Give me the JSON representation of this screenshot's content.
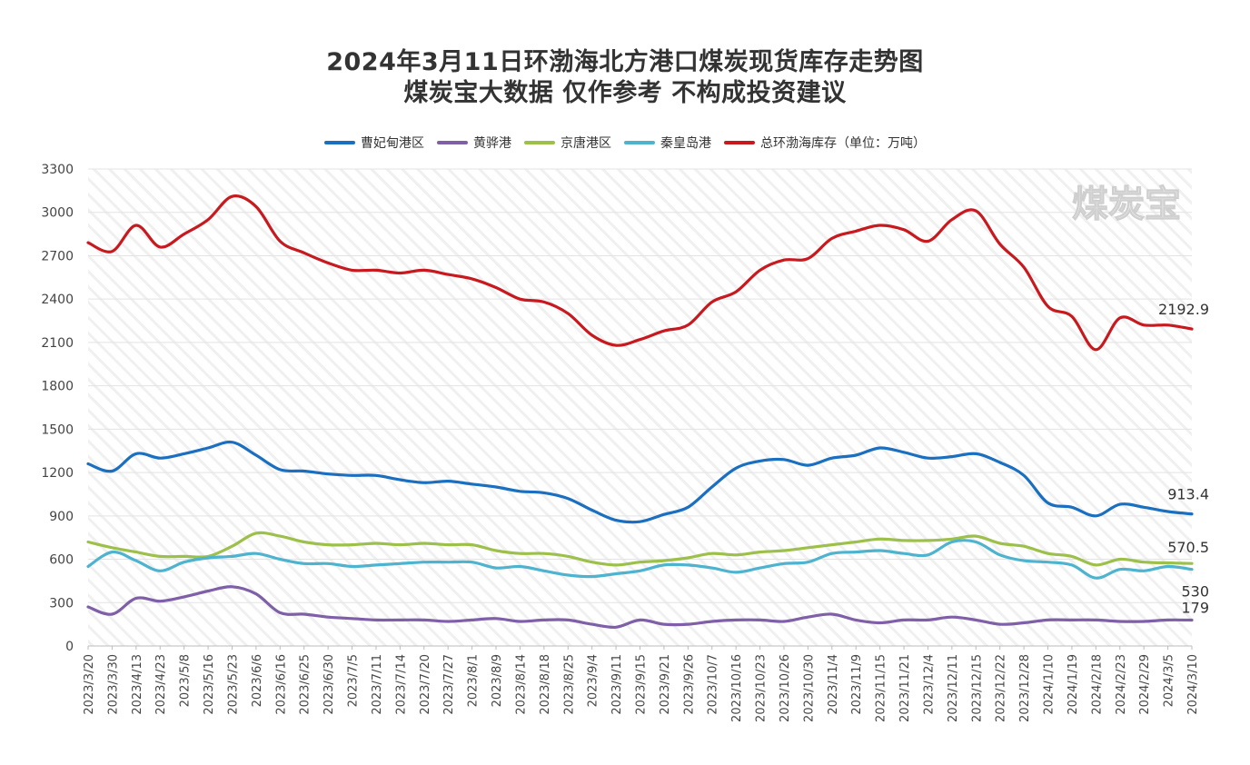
{
  "chart_data": {
    "type": "line",
    "title": "2024年3月11日环渤海北方港口煤炭现货库存走势图",
    "subtitle": "煤炭宝大数据 仅作参考 不构成投资建议",
    "watermark": "煤炭宝",
    "legend_position": "top",
    "grid": true,
    "ylim": [
      0,
      3300
    ],
    "yticks": [
      0,
      300,
      600,
      900,
      1200,
      1500,
      1800,
      2100,
      2400,
      2700,
      3000,
      3300
    ],
    "categories": [
      "2023/3/20",
      "2023/3/30",
      "2023/4/13",
      "2023/4/23",
      "2023/5/8",
      "2023/5/16",
      "2023/5/23",
      "2023/6/6",
      "2023/6/16",
      "2023/6/25",
      "2023/6/30",
      "2023/7/5",
      "2023/7/11",
      "2023/7/14",
      "2023/7/20",
      "2023/7/27",
      "2023/8/1",
      "2023/8/9",
      "2023/8/14",
      "2023/8/18",
      "2023/8/25",
      "2023/9/4",
      "2023/9/11",
      "2023/9/15",
      "2023/9/21",
      "2023/9/26",
      "2023/10/7",
      "2023/10/16",
      "2023/10/23",
      "2023/10/26",
      "2023/10/30",
      "2023/11/4",
      "2023/11/9",
      "2023/11/15",
      "2023/11/21",
      "2023/12/4",
      "2023/12/11",
      "2023/12/15",
      "2023/12/22",
      "2023/12/28",
      "2024/1/10",
      "2024/1/19",
      "2024/2/18",
      "2024/2/23",
      "2024/2/29",
      "2024/3/5",
      "2024/3/10"
    ],
    "series": [
      {
        "name": "曹妃甸港区",
        "color": "#1a6fc0",
        "last_label": "913.4",
        "values": [
          1260,
          1210,
          1330,
          1300,
          1330,
          1370,
          1410,
          1320,
          1220,
          1210,
          1190,
          1180,
          1180,
          1150,
          1130,
          1140,
          1120,
          1100,
          1070,
          1060,
          1020,
          940,
          870,
          860,
          910,
          960,
          1100,
          1230,
          1280,
          1290,
          1250,
          1300,
          1320,
          1370,
          1340,
          1300,
          1310,
          1330,
          1270,
          1180,
          990,
          960,
          900,
          980,
          960,
          930,
          913.4
        ]
      },
      {
        "name": "黄骅港",
        "color": "#7f5fa8",
        "last_label": "179",
        "values": [
          270,
          220,
          330,
          310,
          340,
          380,
          410,
          360,
          230,
          220,
          200,
          190,
          180,
          180,
          180,
          170,
          180,
          190,
          170,
          180,
          180,
          150,
          130,
          180,
          150,
          150,
          170,
          180,
          180,
          170,
          200,
          220,
          180,
          160,
          180,
          180,
          200,
          180,
          150,
          160,
          180,
          180,
          180,
          170,
          170,
          180,
          179
        ]
      },
      {
        "name": "京唐港区",
        "color": "#9cc04a",
        "last_label": "570.5",
        "values": [
          720,
          680,
          650,
          620,
          620,
          620,
          690,
          780,
          760,
          720,
          700,
          700,
          710,
          700,
          710,
          700,
          700,
          660,
          640,
          640,
          620,
          580,
          560,
          580,
          590,
          610,
          640,
          630,
          650,
          660,
          680,
          700,
          720,
          740,
          730,
          730,
          740,
          760,
          710,
          690,
          640,
          620,
          560,
          600,
          580,
          575,
          570.5
        ]
      },
      {
        "name": "秦皇岛港",
        "color": "#4db3cf",
        "last_label": "530",
        "values": [
          550,
          650,
          590,
          520,
          580,
          610,
          620,
          640,
          600,
          570,
          570,
          550,
          560,
          570,
          580,
          580,
          580,
          540,
          550,
          520,
          490,
          480,
          500,
          520,
          560,
          560,
          540,
          510,
          540,
          570,
          580,
          640,
          650,
          660,
          640,
          630,
          720,
          720,
          630,
          590,
          580,
          560,
          470,
          530,
          520,
          550,
          530
        ]
      },
      {
        "name": "总环渤海库存（单位：万吨）",
        "color": "#c8191e",
        "last_label": "2192.9",
        "values": [
          2790,
          2730,
          2910,
          2760,
          2850,
          2950,
          3110,
          3040,
          2800,
          2720,
          2650,
          2600,
          2600,
          2580,
          2600,
          2570,
          2540,
          2480,
          2400,
          2380,
          2300,
          2150,
          2080,
          2120,
          2180,
          2220,
          2380,
          2450,
          2600,
          2670,
          2680,
          2820,
          2870,
          2910,
          2880,
          2800,
          2950,
          3010,
          2780,
          2620,
          2350,
          2280,
          2050,
          2270,
          2220,
          2220,
          2192.9
        ]
      }
    ]
  }
}
